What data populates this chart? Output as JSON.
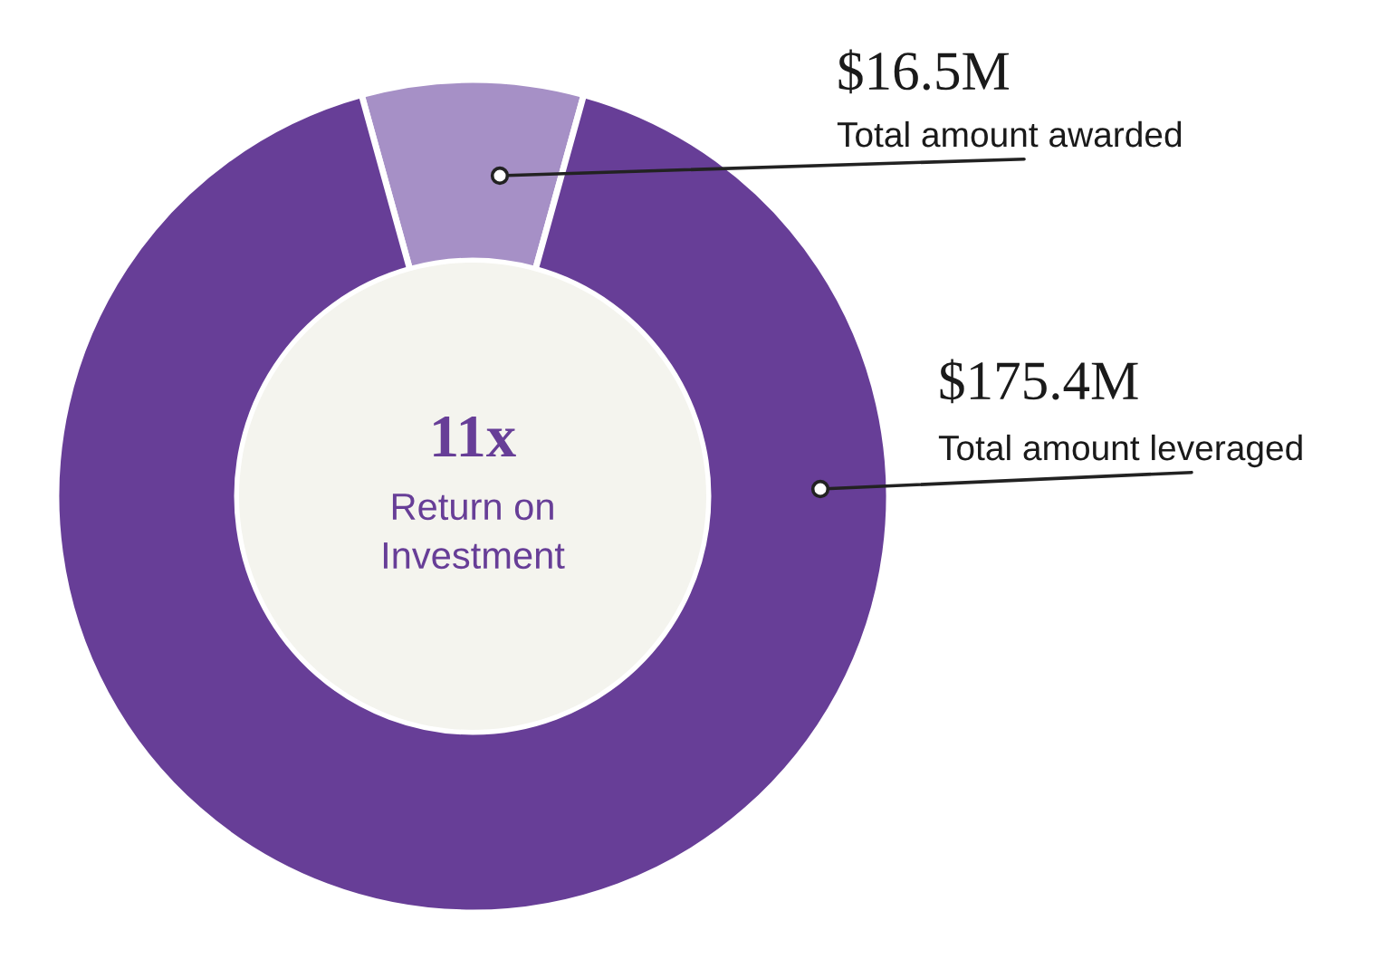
{
  "chart_data": {
    "type": "donut",
    "categories": [
      "Total amount awarded",
      "Total amount leveraged"
    ],
    "values": [
      16.5,
      175.4
    ],
    "colors": [
      "#a690c6",
      "#673e97"
    ],
    "value_labels": [
      "$16.5M",
      "$175.4M"
    ],
    "annotations": [
      "11x",
      "Return on\nInvestment"
    ],
    "legend": false
  }
}
